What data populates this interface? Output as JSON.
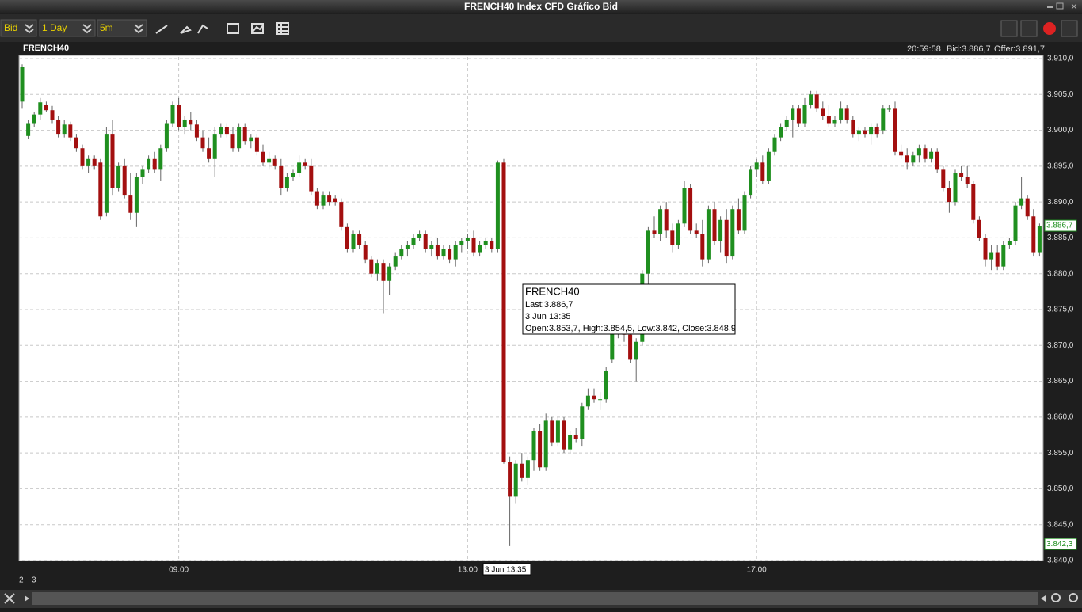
{
  "window": {
    "title": "FRENCH40 Index CFD Gráfico Bid"
  },
  "toolbar": {
    "price_type": "Bid",
    "period": "1 Day",
    "interval": "5m"
  },
  "header": {
    "symbol": "FRENCH40",
    "time": "20:59:58",
    "bid": "Bid:3.886,7",
    "offer": "Offer:3.891,7"
  },
  "tooltip": {
    "symbol": "FRENCH40",
    "last": "Last:3.886,7",
    "date": "3 Jun 13:35",
    "ohlc": "Open:3.853,7, High:3.854,5, Low:3.842, Close:3.848,9"
  },
  "chart_data": {
    "type": "candlestick",
    "up_color": "#1f8f1f",
    "down_color": "#a30f0f",
    "grid": true,
    "ylim": [
      3840,
      3910
    ],
    "yticks": [
      {
        "value": 3840,
        "label": "3.840,0"
      },
      {
        "value": 3845,
        "label": "3.845,0"
      },
      {
        "value": 3850,
        "label": "3.850,0"
      },
      {
        "value": 3855,
        "label": "3.855,0"
      },
      {
        "value": 3860,
        "label": "3.860,0"
      },
      {
        "value": 3865,
        "label": "3.865,0"
      },
      {
        "value": 3870,
        "label": "3.870,0"
      },
      {
        "value": 3875,
        "label": "3.875,0"
      },
      {
        "value": 3880,
        "label": "3.880,0"
      },
      {
        "value": 3885,
        "label": "3.885,0"
      },
      {
        "value": 3890,
        "label": "3.890,0"
      },
      {
        "value": 3895,
        "label": "3.895,0"
      },
      {
        "value": 3900,
        "label": "3.900,0"
      },
      {
        "value": 3905,
        "label": "3.905,0"
      },
      {
        "value": 3910,
        "label": "3.910,0"
      }
    ],
    "price_markers": [
      {
        "value": 3886.7,
        "label": "3.886,7"
      },
      {
        "value": 3842.3,
        "label": "3.842,3"
      }
    ],
    "crosshair_label": "3 Jun 13:35",
    "date_labels": [
      "2",
      "3"
    ],
    "categories": [
      null,
      null,
      null,
      null,
      null,
      null,
      null,
      null,
      null,
      null,
      null,
      null,
      null,
      null,
      null,
      null,
      null,
      null,
      null,
      null,
      null,
      null,
      null,
      null,
      null,
      null,
      "09:00",
      null,
      null,
      null,
      null,
      null,
      null,
      null,
      null,
      null,
      null,
      null,
      null,
      null,
      null,
      null,
      null,
      null,
      null,
      null,
      null,
      null,
      null,
      null,
      null,
      null,
      null,
      null,
      null,
      null,
      null,
      null,
      null,
      null,
      null,
      null,
      null,
      null,
      null,
      null,
      null,
      null,
      null,
      null,
      null,
      null,
      null,
      null,
      "13:00",
      null,
      null,
      null,
      null,
      null,
      null,
      null,
      null,
      null,
      null,
      null,
      null,
      null,
      null,
      null,
      null,
      null,
      null,
      null,
      null,
      null,
      null,
      null,
      null,
      null,
      null,
      null,
      null,
      null,
      null,
      null,
      null,
      null,
      null,
      null,
      null,
      null,
      null,
      null,
      null,
      null,
      null,
      null,
      null,
      null,
      null,
      null,
      "17:00",
      null,
      null,
      null,
      null,
      null,
      null,
      null,
      null,
      null,
      null,
      null,
      null,
      null,
      null,
      null,
      null,
      null,
      null,
      null,
      null,
      null,
      null,
      null,
      null,
      null,
      null,
      null,
      null,
      null,
      null,
      null,
      null,
      null,
      null,
      null,
      null,
      null,
      null,
      null,
      null,
      null,
      null,
      null,
      null,
      null,
      null,
      null
    ],
    "candles": [
      [
        3904.0,
        3909.2,
        3903.0,
        3908.8
      ],
      [
        3899.2,
        3901.5,
        3898.8,
        3901.0
      ],
      [
        3901.0,
        3902.5,
        3900.5,
        3902.2
      ],
      [
        3902.2,
        3904.5,
        3901.5,
        3903.9
      ],
      [
        3903.5,
        3904.0,
        3902.5,
        3902.8
      ],
      [
        3902.8,
        3903.4,
        3901.0,
        3901.5
      ],
      [
        3901.5,
        3902.0,
        3899.0,
        3899.5
      ],
      [
        3899.5,
        3901.5,
        3899.0,
        3900.8
      ],
      [
        3900.8,
        3901.2,
        3898.5,
        3899.0
      ],
      [
        3899.0,
        3899.5,
        3897.0,
        3897.5
      ],
      [
        3897.5,
        3898.0,
        3894.5,
        3895.0
      ],
      [
        3895.0,
        3896.5,
        3894.0,
        3896.0
      ],
      [
        3896.0,
        3896.5,
        3894.5,
        3895.0
      ],
      [
        3895.5,
        3896.0,
        3887.5,
        3888.0
      ],
      [
        3888.5,
        3900.5,
        3888.0,
        3899.5
      ],
      [
        3899.5,
        3901.5,
        3891.0,
        3892.0
      ],
      [
        3892.0,
        3895.5,
        3891.5,
        3895.0
      ],
      [
        3895.0,
        3896.0,
        3890.5,
        3891.0
      ],
      [
        3891.0,
        3894.0,
        3887.5,
        3888.5
      ],
      [
        3888.5,
        3894.0,
        3886.5,
        3893.5
      ],
      [
        3893.5,
        3895.0,
        3892.5,
        3894.5
      ],
      [
        3894.5,
        3896.5,
        3894.0,
        3896.0
      ],
      [
        3896.0,
        3897.0,
        3894.0,
        3894.5
      ],
      [
        3894.5,
        3898.0,
        3893.0,
        3897.5
      ],
      [
        3897.5,
        3901.5,
        3897.0,
        3901.0
      ],
      [
        3901.0,
        3904.0,
        3900.5,
        3903.5
      ],
      [
        3903.5,
        3904.5,
        3900.0,
        3900.5
      ],
      [
        3900.5,
        3902.0,
        3899.5,
        3901.5
      ],
      [
        3901.5,
        3902.5,
        3900.0,
        3900.8
      ],
      [
        3900.8,
        3901.5,
        3898.5,
        3899.0
      ],
      [
        3899.0,
        3900.0,
        3897.0,
        3897.5
      ],
      [
        3897.5,
        3899.0,
        3895.5,
        3896.0
      ],
      [
        3896.0,
        3900.5,
        3893.5,
        3899.5
      ],
      [
        3899.5,
        3901.0,
        3899.0,
        3900.5
      ],
      [
        3900.5,
        3901.0,
        3899.0,
        3899.5
      ],
      [
        3899.5,
        3900.5,
        3897.0,
        3897.5
      ],
      [
        3897.5,
        3901.0,
        3897.0,
        3900.5
      ],
      [
        3900.5,
        3901.0,
        3898.0,
        3898.5
      ],
      [
        3898.5,
        3899.5,
        3897.5,
        3899.0
      ],
      [
        3899.0,
        3899.5,
        3896.5,
        3897.0
      ],
      [
        3897.0,
        3898.0,
        3895.0,
        3895.5
      ],
      [
        3895.5,
        3897.0,
        3894.5,
        3896.0
      ],
      [
        3896.0,
        3896.5,
        3894.5,
        3895.0
      ],
      [
        3895.0,
        3896.0,
        3891.0,
        3892.0
      ],
      [
        3892.0,
        3894.0,
        3891.5,
        3893.5
      ],
      [
        3893.5,
        3894.5,
        3893.0,
        3894.0
      ],
      [
        3894.0,
        3896.5,
        3893.5,
        3895.5
      ],
      [
        3895.5,
        3896.0,
        3894.5,
        3895.0
      ],
      [
        3895.0,
        3896.0,
        3891.0,
        3891.5
      ],
      [
        3891.5,
        3892.0,
        3889.0,
        3889.5
      ],
      [
        3889.5,
        3891.5,
        3889.0,
        3891.0
      ],
      [
        3891.0,
        3891.5,
        3889.5,
        3890.0
      ],
      [
        3890.5,
        3891.0,
        3889.5,
        3890.0
      ],
      [
        3890.0,
        3890.5,
        3886.0,
        3886.5
      ],
      [
        3886.5,
        3887.0,
        3883.0,
        3883.5
      ],
      [
        3883.5,
        3886.0,
        3883.0,
        3885.5
      ],
      [
        3885.5,
        3886.0,
        3883.5,
        3884.0
      ],
      [
        3884.0,
        3884.5,
        3881.5,
        3882.0
      ],
      [
        3882.0,
        3882.5,
        3879.5,
        3880.0
      ],
      [
        3880.0,
        3882.0,
        3879.0,
        3881.5
      ],
      [
        3881.5,
        3882.0,
        3874.5,
        3879.0
      ],
      [
        3879.0,
        3881.5,
        3877.0,
        3881.0
      ],
      [
        3881.0,
        3883.0,
        3880.5,
        3882.5
      ],
      [
        3882.5,
        3884.0,
        3882.0,
        3883.5
      ],
      [
        3883.5,
        3884.5,
        3882.5,
        3884.0
      ],
      [
        3884.0,
        3885.5,
        3883.5,
        3885.0
      ],
      [
        3885.0,
        3886.0,
        3884.5,
        3885.5
      ],
      [
        3885.5,
        3886.0,
        3883.0,
        3883.5
      ],
      [
        3883.5,
        3884.5,
        3882.5,
        3884.0
      ],
      [
        3884.0,
        3885.0,
        3882.0,
        3882.5
      ],
      [
        3882.5,
        3884.0,
        3882.0,
        3883.5
      ],
      [
        3883.5,
        3884.0,
        3881.5,
        3882.0
      ],
      [
        3882.0,
        3884.5,
        3881.0,
        3884.0
      ],
      [
        3884.0,
        3885.0,
        3883.0,
        3884.5
      ],
      [
        3884.5,
        3885.5,
        3883.5,
        3885.0
      ],
      [
        3885.0,
        3886.0,
        3882.5,
        3883.0
      ],
      [
        3883.0,
        3884.5,
        3882.5,
        3884.0
      ],
      [
        3884.0,
        3885.0,
        3883.5,
        3884.5
      ],
      [
        3884.5,
        3885.0,
        3883.0,
        3883.5
      ],
      [
        3883.5,
        3895.8,
        3883.0,
        3895.5
      ],
      [
        3895.5,
        3896.0,
        3853.5,
        3853.7
      ],
      [
        3853.7,
        3854.5,
        3842.0,
        3848.9
      ],
      [
        3848.9,
        3854.0,
        3848.0,
        3853.5
      ],
      [
        3853.5,
        3855.0,
        3851.0,
        3851.5
      ],
      [
        3851.5,
        3854.5,
        3850.5,
        3854.0
      ],
      [
        3854.0,
        3858.5,
        3852.5,
        3858.0
      ],
      [
        3858.0,
        3859.0,
        3852.5,
        3853.0
      ],
      [
        3853.0,
        3860.5,
        3852.5,
        3859.5
      ],
      [
        3859.5,
        3860.0,
        3856.0,
        3856.5
      ],
      [
        3856.5,
        3860.0,
        3856.0,
        3859.5
      ],
      [
        3859.5,
        3860.0,
        3855.0,
        3855.5
      ],
      [
        3855.5,
        3858.0,
        3855.0,
        3857.5
      ],
      [
        3857.5,
        3858.5,
        3856.5,
        3857.0
      ],
      [
        3857.0,
        3862.0,
        3856.0,
        3861.5
      ],
      [
        3861.5,
        3864.0,
        3861.0,
        3863.0
      ],
      [
        3863.0,
        3864.0,
        3862.0,
        3862.5
      ],
      [
        3862.5,
        3863.5,
        3861.0,
        3862.5
      ],
      [
        3862.5,
        3867.0,
        3862.0,
        3866.5
      ],
      [
        3868.0,
        3875.0,
        3867.5,
        3872.0
      ],
      [
        3872.0,
        3873.0,
        3871.0,
        3872.5
      ],
      [
        3872.5,
        3873.5,
        3870.5,
        3871.5
      ],
      [
        3871.5,
        3872.5,
        3867.5,
        3868.0
      ],
      [
        3868.0,
        3871.0,
        3865.0,
        3870.5
      ],
      [
        3870.5,
        3880.5,
        3870.0,
        3880.0
      ],
      [
        3880.0,
        3886.5,
        3878.0,
        3886.0
      ],
      [
        3886.0,
        3888.0,
        3885.0,
        3885.5
      ],
      [
        3885.5,
        3889.5,
        3884.5,
        3889.0
      ],
      [
        3889.0,
        3890.0,
        3885.0,
        3886.0
      ],
      [
        3886.0,
        3887.0,
        3883.0,
        3884.0
      ],
      [
        3884.0,
        3887.5,
        3883.5,
        3887.0
      ],
      [
        3887.0,
        3893.0,
        3886.5,
        3892.0
      ],
      [
        3892.0,
        3892.5,
        3885.5,
        3886.0
      ],
      [
        3886.0,
        3887.0,
        3885.0,
        3885.5
      ],
      [
        3885.5,
        3887.5,
        3881.0,
        3882.0
      ],
      [
        3882.0,
        3889.5,
        3881.5,
        3889.0
      ],
      [
        3889.0,
        3890.0,
        3884.0,
        3884.5
      ],
      [
        3884.5,
        3888.0,
        3883.0,
        3887.5
      ],
      [
        3887.5,
        3889.0,
        3881.5,
        3882.5
      ],
      [
        3882.5,
        3889.5,
        3882.0,
        3889.0
      ],
      [
        3889.0,
        3890.5,
        3885.5,
        3886.0
      ],
      [
        3886.0,
        3891.5,
        3885.5,
        3891.0
      ],
      [
        3891.0,
        3895.0,
        3890.5,
        3894.5
      ],
      [
        3894.5,
        3896.0,
        3893.5,
        3895.5
      ],
      [
        3895.5,
        3896.5,
        3892.5,
        3893.0
      ],
      [
        3893.0,
        3897.5,
        3892.5,
        3897.0
      ],
      [
        3897.0,
        3899.5,
        3896.5,
        3899.0
      ],
      [
        3899.0,
        3901.0,
        3898.5,
        3900.5
      ],
      [
        3900.5,
        3902.0,
        3900.0,
        3901.5
      ],
      [
        3901.5,
        3903.5,
        3899.0,
        3903.0
      ],
      [
        3903.0,
        3903.5,
        3900.5,
        3901.0
      ],
      [
        3901.0,
        3904.5,
        3900.5,
        3903.5
      ],
      [
        3903.5,
        3905.5,
        3903.0,
        3905.0
      ],
      [
        3905.0,
        3905.5,
        3902.5,
        3903.0
      ],
      [
        3903.0,
        3904.0,
        3901.5,
        3902.0
      ],
      [
        3902.0,
        3903.5,
        3900.5,
        3901.0
      ],
      [
        3901.0,
        3902.0,
        3900.5,
        3901.5
      ],
      [
        3901.5,
        3904.0,
        3901.0,
        3903.0
      ],
      [
        3903.0,
        3903.5,
        3901.0,
        3901.5
      ],
      [
        3901.5,
        3902.0,
        3899.0,
        3899.5
      ],
      [
        3899.5,
        3900.5,
        3898.5,
        3900.0
      ],
      [
        3900.0,
        3900.5,
        3899.0,
        3899.5
      ],
      [
        3899.5,
        3901.0,
        3898.0,
        3900.5
      ],
      [
        3900.5,
        3901.0,
        3899.0,
        3899.5
      ],
      [
        3900.0,
        3903.5,
        3899.5,
        3903.0
      ],
      [
        3903.0,
        3903.5,
        3902.5,
        3903.0
      ],
      [
        3903.0,
        3904.0,
        3896.5,
        3897.0
      ],
      [
        3897.0,
        3898.0,
        3896.0,
        3896.5
      ],
      [
        3896.5,
        3897.5,
        3894.5,
        3895.5
      ],
      [
        3895.5,
        3897.0,
        3895.0,
        3896.5
      ],
      [
        3896.5,
        3898.0,
        3895.5,
        3897.5
      ],
      [
        3897.5,
        3898.0,
        3895.5,
        3896.0
      ],
      [
        3896.0,
        3897.5,
        3895.5,
        3897.0
      ],
      [
        3897.0,
        3897.5,
        3894.0,
        3894.5
      ],
      [
        3894.5,
        3895.0,
        3891.5,
        3892.0
      ],
      [
        3892.0,
        3893.0,
        3888.5,
        3890.0
      ],
      [
        3890.0,
        3894.5,
        3889.5,
        3894.0
      ],
      [
        3894.0,
        3895.0,
        3893.0,
        3893.5
      ],
      [
        3893.5,
        3895.0,
        3892.0,
        3892.5
      ],
      [
        3892.5,
        3893.0,
        3887.0,
        3887.5
      ],
      [
        3887.5,
        3888.0,
        3884.5,
        3885.0
      ],
      [
        3885.0,
        3885.5,
        3881.0,
        3882.0
      ],
      [
        3882.0,
        3884.0,
        3880.5,
        3883.0
      ],
      [
        3883.0,
        3884.0,
        3880.5,
        3881.0
      ],
      [
        3881.0,
        3884.5,
        3880.5,
        3884.0
      ],
      [
        3884.0,
        3885.0,
        3883.5,
        3884.5
      ],
      [
        3884.5,
        3890.0,
        3884.0,
        3889.5
      ],
      [
        3889.5,
        3893.5,
        3889.0,
        3890.5
      ],
      [
        3890.5,
        3891.0,
        3887.5,
        3888.0
      ],
      [
        3888.0,
        3889.0,
        3882.5,
        3883.0
      ],
      [
        3883.0,
        3887.0,
        3882.5,
        3886.7
      ]
    ]
  }
}
